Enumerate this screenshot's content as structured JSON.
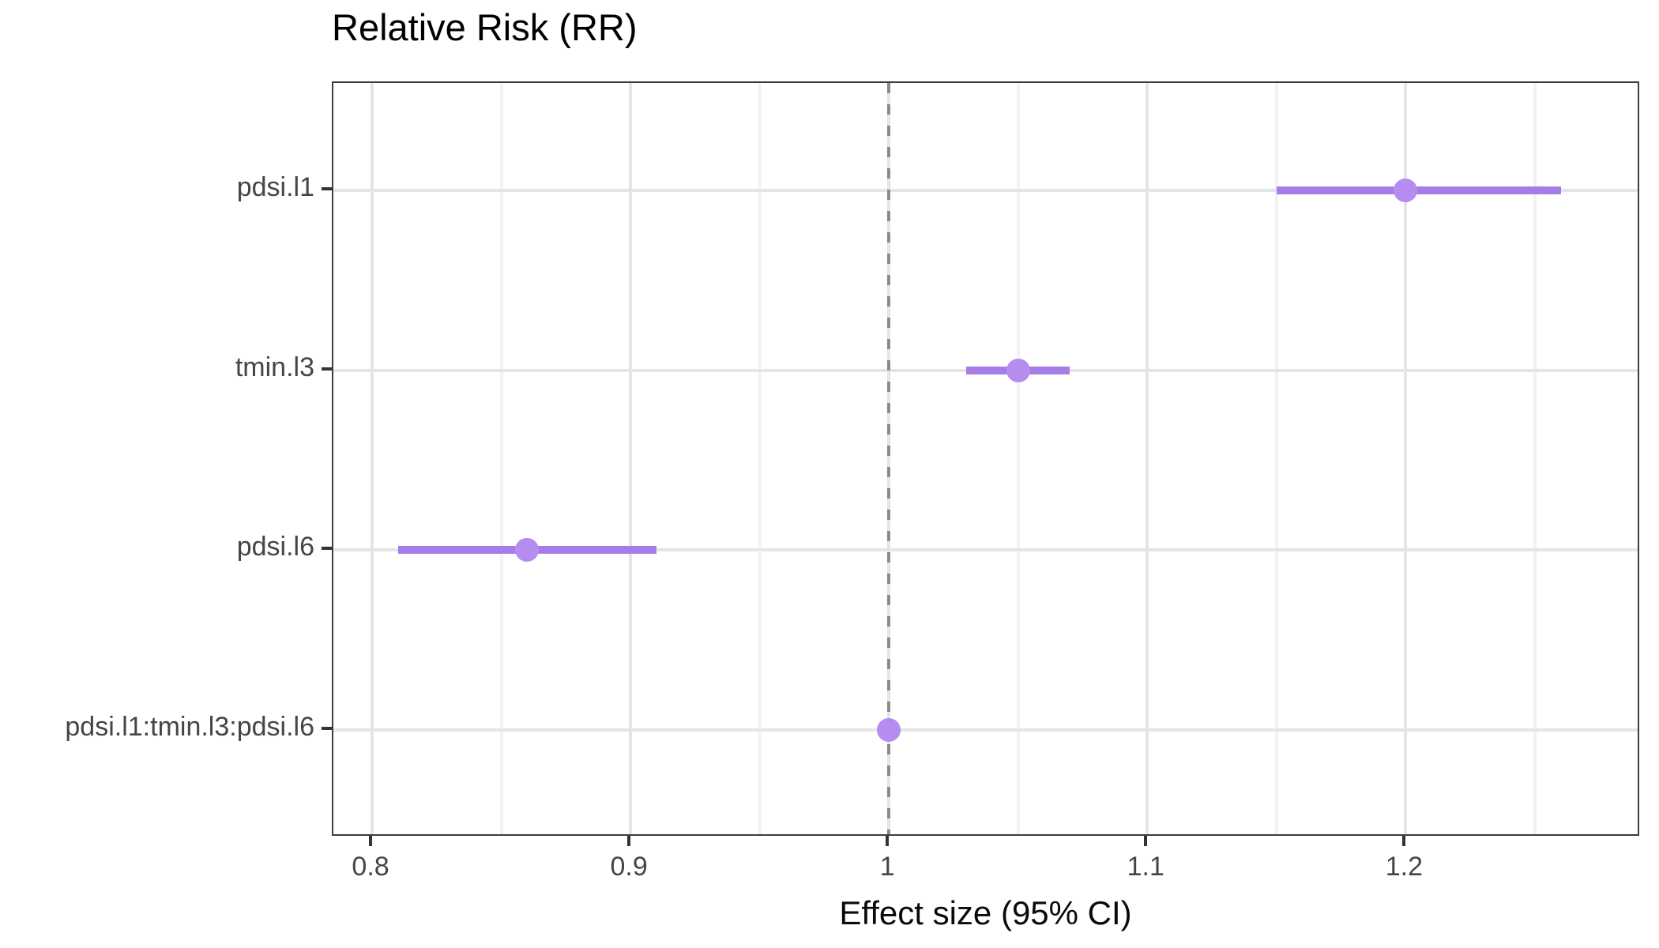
{
  "title": "Relative Risk (RR)",
  "xlabel": "Effect size (95% CI)",
  "colors": {
    "point": "#b58cf0",
    "ci_line": "#a87ce6",
    "refline": "#8a8a8a",
    "grid_major": "#e5e5e5",
    "grid_minor": "#f2f2f2",
    "panel_border": "#3d3d3d",
    "tick_mark": "#333333",
    "axis_text": "#454545",
    "title_text": "#000000"
  },
  "chart_data": {
    "type": "scatter",
    "subtype": "forest-pointrange-horizontal",
    "title": "Relative Risk (RR)",
    "xlabel": "Effect size (95% CI)",
    "ylabel": "",
    "categories": [
      "pdsi.l1",
      "tmin.l3",
      "pdsi.l6",
      "pdsi.l1:tmin.l3:pdsi.l6"
    ],
    "series": [
      {
        "name": "Relative Risk (RR)",
        "points": [
          {
            "term": "pdsi.l1",
            "estimate": 1.2,
            "ci_low": 1.15,
            "ci_high": 1.26
          },
          {
            "term": "tmin.l3",
            "estimate": 1.05,
            "ci_low": 1.03,
            "ci_high": 1.07
          },
          {
            "term": "pdsi.l6",
            "estimate": 0.86,
            "ci_low": 0.81,
            "ci_high": 0.91
          },
          {
            "term": "pdsi.l1:tmin.l3:pdsi.l6",
            "estimate": 1.0,
            "ci_low": 0.997,
            "ci_high": 1.003
          }
        ]
      }
    ],
    "x_ticks": [
      {
        "value": 0.8,
        "label": "0.8"
      },
      {
        "value": 0.9,
        "label": "0.9"
      },
      {
        "value": 1.0,
        "label": "1"
      },
      {
        "value": 1.1,
        "label": "1.1"
      },
      {
        "value": 1.2,
        "label": "1.2"
      }
    ],
    "x_minor_ticks": [
      0.85,
      0.95,
      1.05,
      1.15,
      1.25
    ],
    "xlim": [
      0.785,
      1.291
    ],
    "reference_line": 1.0,
    "grid": "major+minor",
    "legend_position": "none"
  }
}
